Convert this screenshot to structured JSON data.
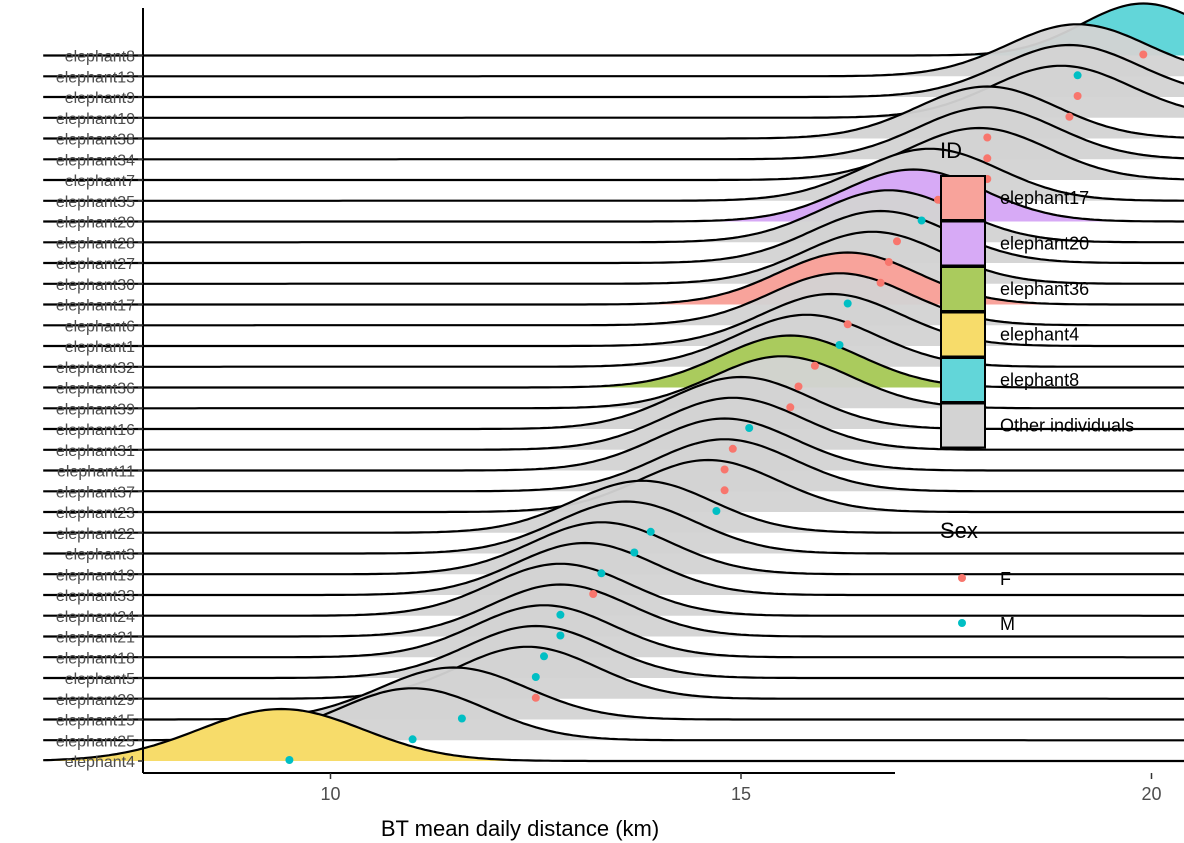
{
  "chart_data": {
    "type": "ridgeline",
    "title": "",
    "xlabel": "BT mean daily distance (km)",
    "ylabel": "",
    "xlim": [
      6.5,
      22.7
    ],
    "x_ticks": [
      10,
      15,
      20
    ],
    "grid": false,
    "legend_position": "right",
    "rows": [
      {
        "id": "elephant4",
        "mean": 9.5,
        "sex": "M",
        "group": "elephant4",
        "peak_x": 9.4,
        "sd": 1.0
      },
      {
        "id": "elephant25",
        "mean": 11.0,
        "sex": "M",
        "group": "Other individuals",
        "peak_x": 11.0,
        "sd": 0.9
      },
      {
        "id": "elephant15",
        "mean": 11.6,
        "sex": "M",
        "group": "Other individuals",
        "peak_x": 11.5,
        "sd": 0.9
      },
      {
        "id": "elephant29",
        "mean": 12.5,
        "sex": "F",
        "group": "Other individuals",
        "peak_x": 12.4,
        "sd": 0.85
      },
      {
        "id": "elephant5",
        "mean": 12.5,
        "sex": "M",
        "group": "Other individuals",
        "peak_x": 12.5,
        "sd": 0.85
      },
      {
        "id": "elephant18",
        "mean": 12.6,
        "sex": "M",
        "group": "Other individuals",
        "peak_x": 12.6,
        "sd": 0.85
      },
      {
        "id": "elephant21",
        "mean": 12.8,
        "sex": "M",
        "group": "Other individuals",
        "peak_x": 12.8,
        "sd": 0.85
      },
      {
        "id": "elephant24",
        "mean": 12.8,
        "sex": "M",
        "group": "Other individuals",
        "peak_x": 12.8,
        "sd": 0.85
      },
      {
        "id": "elephant33",
        "mean": 13.2,
        "sex": "F",
        "group": "Other individuals",
        "peak_x": 13.1,
        "sd": 0.85
      },
      {
        "id": "elephant19",
        "mean": 13.3,
        "sex": "M",
        "group": "Other individuals",
        "peak_x": 13.3,
        "sd": 0.85
      },
      {
        "id": "elephant3",
        "mean": 13.7,
        "sex": "M",
        "group": "Other individuals",
        "peak_x": 13.6,
        "sd": 0.85
      },
      {
        "id": "elephant22",
        "mean": 13.9,
        "sex": "M",
        "group": "Other individuals",
        "peak_x": 13.8,
        "sd": 0.85
      },
      {
        "id": "elephant23",
        "mean": 14.7,
        "sex": "M",
        "group": "Other individuals",
        "peak_x": 14.6,
        "sd": 0.85
      },
      {
        "id": "elephant37",
        "mean": 14.8,
        "sex": "F",
        "group": "Other individuals",
        "peak_x": 14.8,
        "sd": 0.85
      },
      {
        "id": "elephant11",
        "mean": 14.8,
        "sex": "F",
        "group": "Other individuals",
        "peak_x": 14.8,
        "sd": 0.85
      },
      {
        "id": "elephant31",
        "mean": 14.9,
        "sex": "F",
        "group": "Other individuals",
        "peak_x": 14.9,
        "sd": 0.85
      },
      {
        "id": "elephant16",
        "mean": 15.1,
        "sex": "M",
        "group": "Other individuals",
        "peak_x": 15.0,
        "sd": 0.85
      },
      {
        "id": "elephant39",
        "mean": 15.6,
        "sex": "F",
        "group": "Other individuals",
        "peak_x": 15.5,
        "sd": 0.85
      },
      {
        "id": "elephant36",
        "mean": 15.7,
        "sex": "F",
        "group": "elephant36",
        "peak_x": 15.6,
        "sd": 0.85
      },
      {
        "id": "elephant32",
        "mean": 15.9,
        "sex": "F",
        "group": "Other individuals",
        "peak_x": 15.8,
        "sd": 0.85
      },
      {
        "id": "elephant1",
        "mean": 16.2,
        "sex": "M",
        "group": "Other individuals",
        "peak_x": 16.1,
        "sd": 0.85
      },
      {
        "id": "elephant6",
        "mean": 16.3,
        "sex": "F",
        "group": "Other individuals",
        "peak_x": 16.2,
        "sd": 0.85
      },
      {
        "id": "elephant17",
        "mean": 16.3,
        "sex": "M",
        "group": "elephant17",
        "peak_x": 16.3,
        "sd": 0.85
      },
      {
        "id": "elephant30",
        "mean": 16.7,
        "sex": "F",
        "group": "Other individuals",
        "peak_x": 16.6,
        "sd": 0.85
      },
      {
        "id": "elephant27",
        "mean": 16.8,
        "sex": "F",
        "group": "Other individuals",
        "peak_x": 16.7,
        "sd": 0.85
      },
      {
        "id": "elephant28",
        "mean": 16.9,
        "sex": "F",
        "group": "Other individuals",
        "peak_x": 16.8,
        "sd": 0.85
      },
      {
        "id": "elephant20",
        "mean": 17.2,
        "sex": "M",
        "group": "elephant20",
        "peak_x": 17.1,
        "sd": 0.85
      },
      {
        "id": "elephant35",
        "mean": 17.4,
        "sex": "F",
        "group": "Other individuals",
        "peak_x": 17.3,
        "sd": 0.85
      },
      {
        "id": "elephant7",
        "mean": 18.0,
        "sex": "F",
        "group": "Other individuals",
        "peak_x": 17.9,
        "sd": 0.85
      },
      {
        "id": "elephant34",
        "mean": 18.0,
        "sex": "F",
        "group": "Other individuals",
        "peak_x": 18.0,
        "sd": 0.85
      },
      {
        "id": "elephant38",
        "mean": 18.0,
        "sex": "F",
        "group": "Other individuals",
        "peak_x": 18.0,
        "sd": 0.85
      },
      {
        "id": "elephant10",
        "mean": 19.0,
        "sex": "F",
        "group": "Other individuals",
        "peak_x": 18.9,
        "sd": 0.85
      },
      {
        "id": "elephant9",
        "mean": 19.1,
        "sex": "F",
        "group": "Other individuals",
        "peak_x": 19.0,
        "sd": 0.85
      },
      {
        "id": "elephant13",
        "mean": 19.1,
        "sex": "M",
        "group": "Other individuals",
        "peak_x": 19.1,
        "sd": 0.85
      },
      {
        "id": "elephant8",
        "mean": 19.9,
        "sex": "F",
        "group": "elephant8",
        "peak_x": 19.9,
        "sd": 0.75
      }
    ],
    "legend_id": {
      "title": "ID",
      "items": [
        {
          "label": "elephant17",
          "color": "#f8a39b"
        },
        {
          "label": "elephant20",
          "color": "#d7aaf6"
        },
        {
          "label": "elephant36",
          "color": "#aacb5d"
        },
        {
          "label": "elephant4",
          "color": "#f7dc6a"
        },
        {
          "label": "elephant8",
          "color": "#62d6d9"
        },
        {
          "label": "Other individuals",
          "color": "#d3d3d3"
        }
      ]
    },
    "legend_sex": {
      "title": "Sex",
      "items": [
        {
          "label": "F",
          "color": "#f8766d"
        },
        {
          "label": "M",
          "color": "#00bfc4"
        }
      ]
    }
  }
}
